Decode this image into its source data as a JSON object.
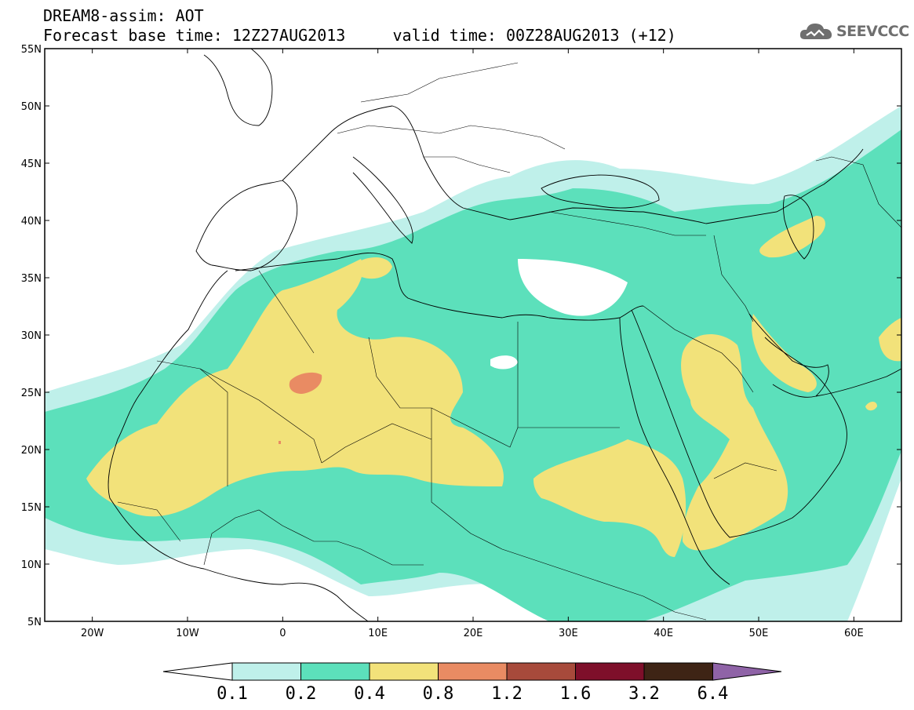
{
  "header": {
    "title_line1": "DREAM8-assim: AOT",
    "title_line2": "Forecast base time: 12Z27AUG2013     valid time: 00Z28AUG2013 (+12)"
  },
  "logo": {
    "text": "SEEVCCC",
    "icon": "cloud-logo-icon"
  },
  "map": {
    "lon_range": [
      -25,
      65
    ],
    "lat_range": [
      5,
      55
    ],
    "lat_labels": [
      "55N",
      "50N",
      "45N",
      "40N",
      "35N",
      "30N",
      "25N",
      "20N",
      "15N",
      "10N",
      "5N"
    ],
    "lon_labels": [
      "20W",
      "10W",
      "0",
      "10E",
      "20E",
      "30E",
      "40E",
      "50E",
      "60E"
    ]
  },
  "colorbar": {
    "ticks": [
      "0.1",
      "0.2",
      "0.4",
      "0.8",
      "1.2",
      "1.6",
      "3.2",
      "6.4"
    ],
    "colors": [
      "#bff0ea",
      "#5ce0bb",
      "#f2e27a",
      "#e98b63",
      "#a74a3b",
      "#7e0f2a",
      "#3e2415",
      "#8f63a7"
    ],
    "under_color": "#ffffff"
  }
}
